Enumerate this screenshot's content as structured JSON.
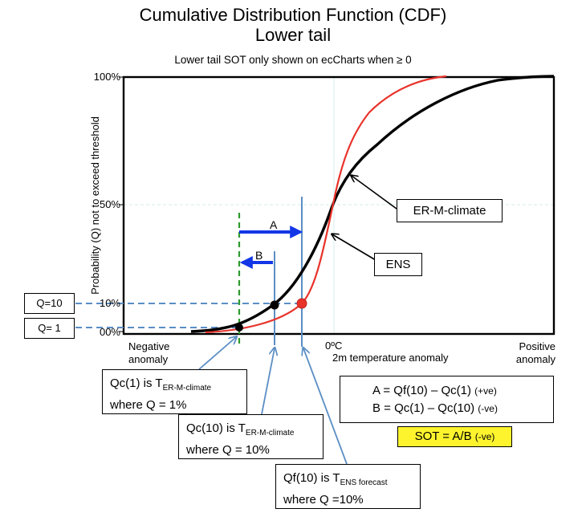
{
  "title_line1": "Cumulative Distribution Function (CDF)",
  "title_line2": "Lower tail",
  "subtitle": "Lower tail SOT only shown on ecCharts when  ≥ 0",
  "y_axis_label": "Probability (Q) not to exceed threshold",
  "y_ticks": [
    "100%",
    "50%",
    "10%",
    "00%"
  ],
  "q_boxes": [
    "Q=10",
    "Q= 1"
  ],
  "x_labels": {
    "negative": "Negative\nanomaly",
    "zero": "0ºC",
    "axis": "2m temperature anomaly",
    "positive": "Positive\nanomaly"
  },
  "arrow_labels": {
    "a": "A",
    "b": "B"
  },
  "callouts": {
    "er_m_climate": "ER-M-climate",
    "ens": "ENS"
  },
  "qc1": {
    "prefix": "Qc(1) is T",
    "sub": "ER-M-climate",
    "line2": "where Q = 1%"
  },
  "qc10": {
    "prefix": "Qc(10) is T",
    "sub": "ER-M-climate",
    "line2": "where Q = 10%"
  },
  "qf10": {
    "prefix": "Qf(10) is T",
    "sub": "ENS forecast",
    "line2": "where Q =10%"
  },
  "formulas": {
    "a_eq": "A = Qf(10) – Qc(1)",
    "a_sign": "(+ve)",
    "b_eq": "B = Qc(1) – Qc(10)",
    "b_sign": "(-ve)",
    "sot_eq": "SOT = A/B",
    "sot_sign": "(-ve)"
  },
  "colors": {
    "er_m_climate_curve": "#000000",
    "ens_curve": "#e8322a",
    "marker_line": "#5b8ec4",
    "arrow": "#1336e6",
    "q1_dashed": "#2d9a2d",
    "sot_highlight": "#fef42e"
  }
}
